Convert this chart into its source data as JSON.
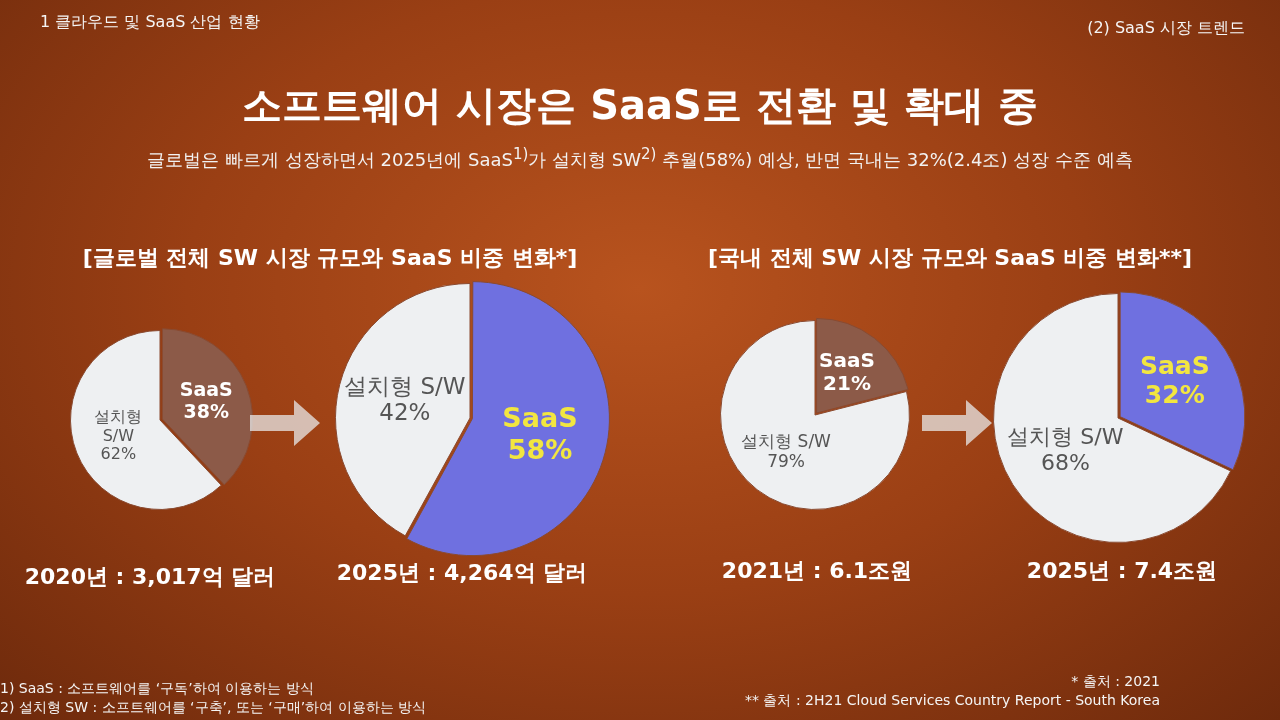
{
  "chart_data": [
    {
      "type": "other",
      "title": "소프트웨어 시장은 SaaS로 전환 및 확대 중",
      "subtitle": "글로벌은 빠르게 성장하면서 2025년에 SaaS$^{1)}$가 설치형 SW$^{2)}$ 추월(58%) 예상, 반면 국내는 32%(2.4조) 성장 수준 예측",
      "annotations": [
        "1 클라우드 및 SaaS 산업 현황",
        "(2) SaaS 시장 트렌드",
        "1) SaaS : 소프트웨어를 ‘구독’하여 이용하는 방식",
        "2) 설치형 SW : 소프트웨어를 ‘구축’, 또는 ‘구매’하여 이용하는 방식",
        "* 출처 : 2021",
        "** 출처 : 2H21 Cloud Services Country Report - South Korea"
      ]
    },
    {
      "type": "pie",
      "title": "[글로벌 전체 SW 시장 규모와 SaaS 비중 변화*]",
      "categories": [
        "설치형 S/W",
        "SaaS"
      ],
      "values": [
        62,
        38
      ],
      "value_labels": [
        "62%",
        "38%"
      ],
      "colors": [
        "#eef0f2",
        "#8c5a48"
      ],
      "annotations": [
        "2020년 : 3,017억 달러"
      ]
    },
    {
      "type": "pie",
      "categories": [
        "설치형 S/W",
        "SaaS"
      ],
      "values": [
        42,
        58
      ],
      "value_labels": [
        "42%",
        "58%"
      ],
      "colors": [
        "#eef0f2",
        "#6f70e0"
      ],
      "annotations": [
        "2025년 : 4,264억 달러"
      ]
    },
    {
      "type": "pie",
      "title": "[국내 전체 SW 시장 규모와 SaaS 비중 변화**]",
      "categories": [
        "설치형 S/W",
        "SaaS"
      ],
      "values": [
        79,
        21
      ],
      "value_labels": [
        "79%",
        "21%"
      ],
      "colors": [
        "#eef0f2",
        "#8c5a48"
      ],
      "annotations": [
        "2021년 : 6.1조원"
      ]
    },
    {
      "type": "pie",
      "categories": [
        "설치형 S/W",
        "SaaS"
      ],
      "values": [
        68,
        32
      ],
      "value_labels": [
        "68%",
        "32%"
      ],
      "colors": [
        "#eef0f2",
        "#6f70e0"
      ],
      "annotations": [
        "2025년 : 7.4조원"
      ]
    }
  ]
}
